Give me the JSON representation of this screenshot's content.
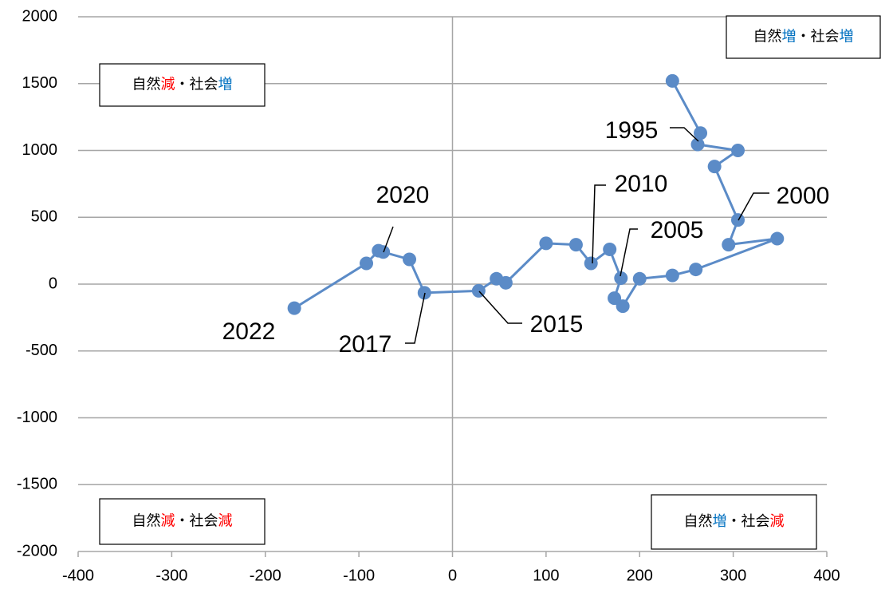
{
  "chart_data": {
    "type": "scatter",
    "xlim": [
      -400,
      400
    ],
    "ylim": [
      -2000,
      2000
    ],
    "xticks": [
      -400,
      -300,
      -200,
      -100,
      0,
      100,
      200,
      300,
      400
    ],
    "yticks": [
      -2000,
      -1500,
      -1000,
      -500,
      0,
      500,
      1000,
      1500,
      2000
    ],
    "grid": true,
    "series": [
      {
        "color": "#5b8bc7",
        "x": [
          235,
          265,
          262,
          305,
          280,
          305,
          295,
          347,
          260,
          235,
          200,
          182,
          173,
          180,
          168,
          148,
          132,
          100,
          57,
          47,
          28,
          -30,
          -46,
          -74,
          -79,
          -92,
          -169
        ],
        "values": [
          1520,
          1130,
          1045,
          1000,
          880,
          480,
          295,
          340,
          110,
          65,
          40,
          -165,
          -105,
          45,
          260,
          155,
          295,
          305,
          10,
          40,
          -50,
          -65,
          185,
          240,
          250,
          155,
          -180
        ]
      }
    ],
    "annotations": [
      "1995",
      "2000",
      "2005",
      "2010",
      "2015",
      "2017",
      "2020",
      "2022"
    ],
    "quadrant_labels": [
      [
        {
          "text": "自然"
        },
        {
          "text": "増",
          "color": "#0070c0"
        },
        {
          "text": "・社会"
        },
        {
          "text": "増",
          "color": "#0070c0"
        }
      ],
      [
        {
          "text": "自然"
        },
        {
          "text": "減",
          "color": "#ff0000"
        },
        {
          "text": "・社会"
        },
        {
          "text": "増",
          "color": "#0070c0"
        }
      ],
      [
        {
          "text": "自然"
        },
        {
          "text": "減",
          "color": "#ff0000"
        },
        {
          "text": "・社会"
        },
        {
          "text": "減",
          "color": "#ff0000"
        }
      ],
      [
        {
          "text": "自然"
        },
        {
          "text": "増",
          "color": "#0070c0"
        },
        {
          "text": "・社会"
        },
        {
          "text": "減",
          "color": "#ff0000"
        }
      ]
    ]
  }
}
